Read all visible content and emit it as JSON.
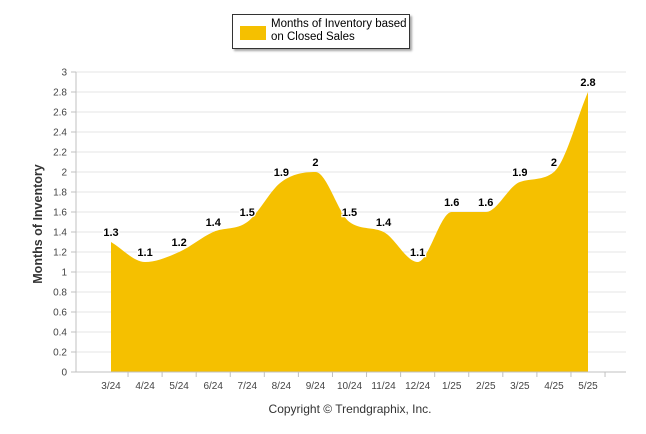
{
  "chart_data": {
    "type": "area",
    "categories": [
      "3/24",
      "4/24",
      "5/24",
      "6/24",
      "7/24",
      "8/24",
      "9/24",
      "10/24",
      "11/24",
      "12/24",
      "1/25",
      "2/25",
      "3/25",
      "4/25",
      "5/25"
    ],
    "series": [
      {
        "name": "Months of Inventory based on Closed Sales",
        "values": [
          1.3,
          1.1,
          1.2,
          1.4,
          1.5,
          1.9,
          2,
          1.5,
          1.4,
          1.1,
          1.6,
          1.6,
          1.9,
          2,
          2.8
        ],
        "labels": [
          "1.3",
          "1.1",
          "1.2",
          "1.4",
          "1.5",
          "1.9",
          "2",
          "1.5",
          "1.4",
          "1.1",
          "1.6",
          "1.6",
          "1.9",
          "2",
          "2.8"
        ],
        "color": "#f5c000"
      }
    ],
    "ylabel": "Months of Inventory",
    "xlabel": "",
    "ylim": [
      0,
      3
    ],
    "yticks": [
      "0",
      "0.2",
      "0.4",
      "0.6",
      "0.8",
      "1",
      "1.2",
      "1.4",
      "1.6",
      "1.8",
      "2",
      "2.2",
      "2.4",
      "2.6",
      "2.8",
      "3"
    ],
    "grid": true,
    "legend_position": "top-center"
  },
  "legend": {
    "label": "Months of Inventory based on Closed Sales"
  },
  "footer": {
    "copyright": "Copyright © Trendgraphix, Inc."
  },
  "colors": {
    "area": "#f5c000",
    "grid": "#e6e6e6",
    "axis": "#c0c0c0",
    "text": "#333333"
  }
}
